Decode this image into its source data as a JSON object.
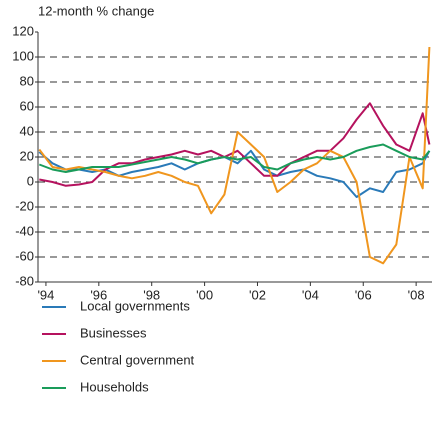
{
  "chart_data": {
    "type": "line",
    "ylabel": "12-month % change",
    "x": [
      1993.75,
      1994.25,
      1994.75,
      1995.25,
      1995.75,
      1996.25,
      1996.75,
      1997.25,
      1997.75,
      1998.25,
      1998.75,
      1999.25,
      1999.75,
      2000.25,
      2000.75,
      2001.25,
      2001.75,
      2002.25,
      2002.75,
      2003.25,
      2003.75,
      2004.25,
      2004.75,
      2005.25,
      2005.75,
      2006.25,
      2006.75,
      2007.25,
      2007.75,
      2008.25,
      2008.5
    ],
    "series": [
      {
        "name": "Local governments",
        "color": "#2a7ab8",
        "values": [
          24,
          15,
          10,
          10,
          8,
          10,
          5,
          8,
          10,
          12,
          15,
          10,
          15,
          18,
          20,
          15,
          25,
          10,
          5,
          8,
          10,
          5,
          3,
          0,
          -12,
          -5,
          -8,
          8,
          10,
          15,
          25
        ]
      },
      {
        "name": "Businesses",
        "color": "#b5125e",
        "values": [
          2,
          0,
          -3,
          -2,
          0,
          10,
          15,
          15,
          18,
          20,
          22,
          25,
          22,
          25,
          20,
          25,
          15,
          5,
          5,
          15,
          20,
          25,
          25,
          35,
          50,
          63,
          45,
          30,
          25,
          55,
          30
        ]
      },
      {
        "name": "Central government",
        "color": "#f0961e",
        "values": [
          26,
          12,
          10,
          12,
          10,
          8,
          5,
          3,
          5,
          8,
          5,
          0,
          -3,
          -25,
          -10,
          40,
          30,
          20,
          -8,
          0,
          10,
          15,
          25,
          20,
          0,
          -60,
          -65,
          -50,
          20,
          -5,
          108
        ]
      },
      {
        "name": "Households",
        "color": "#1a9c5a",
        "values": [
          14,
          10,
          8,
          10,
          12,
          12,
          12,
          14,
          16,
          18,
          20,
          18,
          15,
          18,
          20,
          18,
          20,
          12,
          10,
          15,
          18,
          20,
          18,
          20,
          25,
          28,
          30,
          25,
          20,
          18,
          25
        ]
      }
    ],
    "xlim": [
      1993.7,
      2008.6
    ],
    "xticks": [
      {
        "value": 1994,
        "label": "'94"
      },
      {
        "value": 1996,
        "label": "'96"
      },
      {
        "value": 1998,
        "label": "'98"
      },
      {
        "value": 2000,
        "label": "'00"
      },
      {
        "value": 2002,
        "label": "'02"
      },
      {
        "value": 2004,
        "label": "'04"
      },
      {
        "value": 2006,
        "label": "'06"
      },
      {
        "value": 2008,
        "label": "'08"
      }
    ],
    "ylim": [
      -80,
      120
    ],
    "yticks": [
      -80,
      -60,
      -40,
      -20,
      0,
      20,
      40,
      60,
      80,
      100,
      120
    ],
    "grid": true,
    "legend": "bottom"
  }
}
